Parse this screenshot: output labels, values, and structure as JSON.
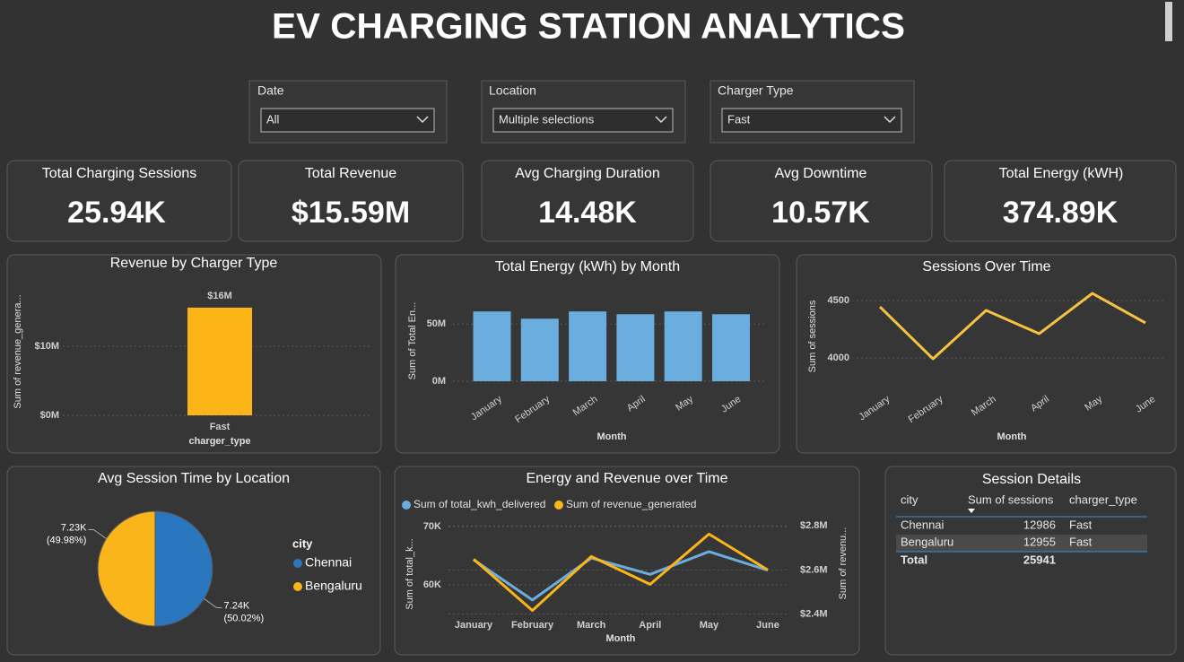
{
  "title": "EV CHARGING STATION ANALYTICS",
  "filters": [
    {
      "label": "Date",
      "value": "All"
    },
    {
      "label": "Location",
      "value": "Multiple selections"
    },
    {
      "label": "Charger Type",
      "value": "Fast"
    }
  ],
  "kpis": [
    {
      "label": "Total Charging Sessions",
      "value": "25.94K"
    },
    {
      "label": "Total Revenue",
      "value": "$15.59M"
    },
    {
      "label": "Avg Charging Duration",
      "value": "14.48K"
    },
    {
      "label": "Avg Downtime",
      "value": "10.57K"
    },
    {
      "label": "Total Energy (kWH)",
      "value": "374.89K"
    }
  ],
  "chart_data": [
    {
      "type": "bar",
      "title": "Revenue by Charger Type",
      "y_label": "Sum of revenue_genera...",
      "x_label": "charger_type",
      "categories": [
        "Fast"
      ],
      "values": [
        15590000
      ],
      "value_labels": [
        "$16M"
      ],
      "color": "#fbb516",
      "ylim": [
        0,
        20000000
      ],
      "yticks": [
        {
          "value": 0,
          "label": "$0M"
        },
        {
          "value": 10000000,
          "label": "$10M"
        }
      ],
      "grid": true
    },
    {
      "type": "bar",
      "title": "Total Energy (kWh) by Month",
      "y_label": "Sum of Total En...",
      "x_label": "Month",
      "categories": [
        "January",
        "February",
        "March",
        "April",
        "May",
        "June"
      ],
      "values": [
        61000000,
        54700000,
        61000000,
        58600000,
        61000000,
        58600000
      ],
      "color": "#6aaee0",
      "ylim": [
        0,
        80000000
      ],
      "yticks": [
        {
          "value": 0,
          "label": "0M"
        },
        {
          "value": 50000000,
          "label": "50M"
        }
      ],
      "grid": true
    },
    {
      "type": "line",
      "title": "Sessions Over Time",
      "y_label": "Sum of sessions",
      "x_label": "Month",
      "categories": [
        "January",
        "February",
        "March",
        "April",
        "May",
        "June"
      ],
      "values": [
        4445,
        3992,
        4414,
        4211,
        4562,
        4305
      ],
      "color": "#f5c242",
      "ylim": [
        3850,
        4700
      ],
      "yticks": [
        4000,
        4500
      ],
      "grid": true
    },
    {
      "type": "pie",
      "title": "Avg Session Time by Location",
      "legend_title": "city",
      "categories": [
        "Chennai",
        "Bengaluru"
      ],
      "values": [
        7240,
        7230
      ],
      "value_labels": [
        "7.24K",
        "7.23K"
      ],
      "percent_labels": [
        "(50.02%)",
        "(49.98%)"
      ],
      "colors": [
        "#2a77c0",
        "#f9b51a"
      ]
    },
    {
      "type": "line",
      "title": "Energy and Revenue over Time",
      "y_label": "Sum of total_k...",
      "y2_label": "Sum of revenu...",
      "x_label": "Month",
      "categories": [
        "January",
        "February",
        "March",
        "April",
        "May",
        "June"
      ],
      "series": [
        {
          "name": "Sum of total_kwh_delivered",
          "color": "#6aaee0",
          "values": [
            64300,
            57400,
            64600,
            61800,
            65700,
            62500
          ]
        },
        {
          "name": "Sum of revenue_generated",
          "color": "#f9b51a",
          "axis": "y2",
          "values": [
            2649000,
            2416000,
            2661000,
            2535000,
            2763000,
            2600000
          ]
        }
      ],
      "ylim": [
        55000,
        72000
      ],
      "yticks": [
        {
          "value": 60000,
          "label": "60K"
        },
        {
          "value": 70000,
          "label": "70K"
        }
      ],
      "y2lim": [
        2400000,
        2850000
      ],
      "y2ticks": [
        {
          "value": 2400000,
          "label": "$2.4M"
        },
        {
          "value": 2600000,
          "label": "$2.6M"
        },
        {
          "value": 2800000,
          "label": "$2.8M"
        }
      ],
      "grid": true
    }
  ],
  "table": {
    "title": "Session Details",
    "columns": [
      "city",
      "Sum of sessions",
      "charger_type"
    ],
    "rows": [
      [
        "Chennai",
        12986,
        "Fast"
      ],
      [
        "Bengaluru",
        12955,
        "Fast"
      ]
    ],
    "total": {
      "label": "Total",
      "sessions": 25941
    }
  }
}
